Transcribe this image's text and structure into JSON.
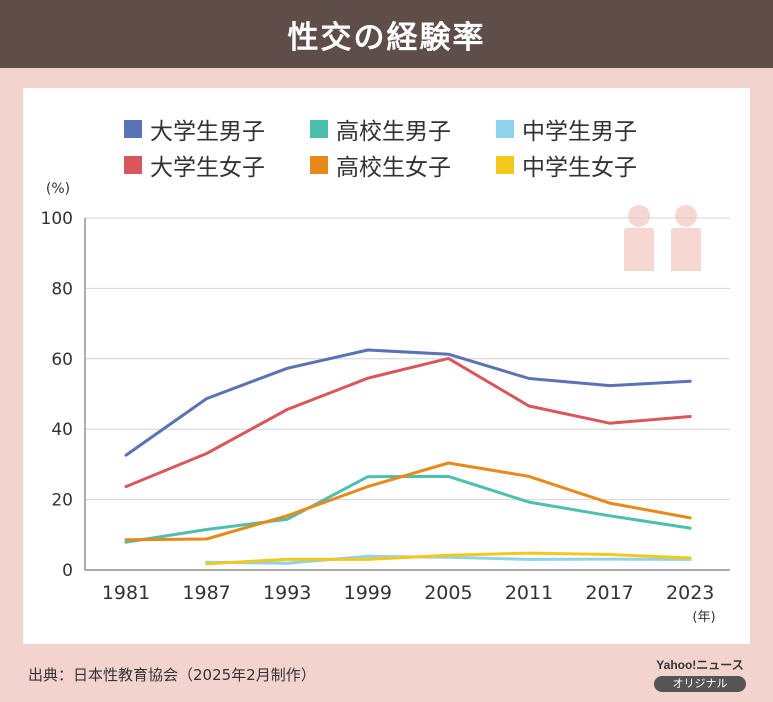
{
  "header": {
    "title": "性交の経験率"
  },
  "chart_data": {
    "type": "line",
    "ylabel": "(%)",
    "xlabel": "(年)",
    "ylim": [
      0,
      100
    ],
    "yticks": [
      0,
      20,
      40,
      60,
      80,
      100
    ],
    "categories": [
      "1981",
      "1987",
      "1993",
      "1999",
      "2005",
      "2011",
      "2017",
      "2023"
    ],
    "grid": "horizontal",
    "legend_position": "top",
    "series": [
      {
        "name": "大学生男子",
        "color": "#5b72b4",
        "values": [
          32.6,
          48.7,
          57.3,
          62.5,
          61.3,
          54.4,
          52.4,
          53.6
        ]
      },
      {
        "name": "高校生男子",
        "color": "#4cc0b0",
        "values": [
          7.9,
          11.5,
          14.4,
          26.5,
          26.6,
          19.3,
          15.4,
          11.9
        ]
      },
      {
        "name": "中学生男子",
        "color": "#8fd2ec",
        "values": [
          null,
          2.2,
          1.9,
          3.9,
          3.6,
          3.0,
          3.1,
          3.0
        ]
      },
      {
        "name": "大学生女子",
        "color": "#d9575c",
        "values": [
          23.7,
          33.1,
          45.6,
          54.5,
          60.1,
          46.6,
          41.7,
          43.6
        ]
      },
      {
        "name": "高校生女子",
        "color": "#e88a1a",
        "values": [
          8.6,
          8.8,
          15.4,
          23.7,
          30.4,
          26.6,
          19.0,
          14.8
        ]
      },
      {
        "name": "中学生女子",
        "color": "#f2c81c",
        "values": [
          null,
          1.8,
          3.0,
          3.0,
          4.2,
          4.8,
          4.4,
          3.4
        ]
      }
    ]
  },
  "footer": {
    "source": "出典：日本性教育協会（2025年2月制作）",
    "brand": "Yahoo!ニュース",
    "badge": "オリジナル"
  }
}
